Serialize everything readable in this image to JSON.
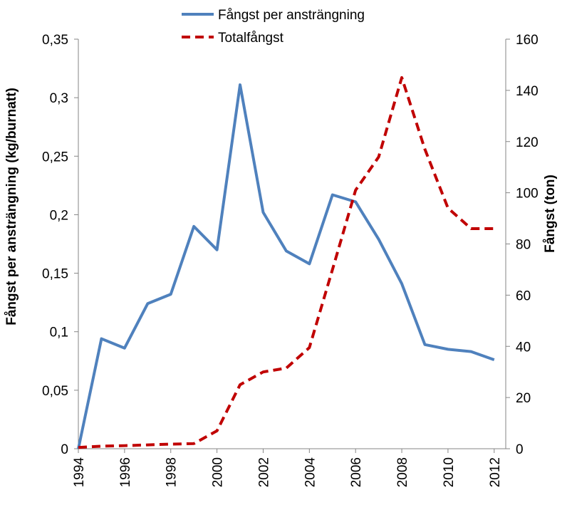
{
  "chart_data": {
    "type": "line",
    "x": [
      1994,
      1995,
      1996,
      1997,
      1998,
      1999,
      2000,
      2001,
      2002,
      2003,
      2004,
      2005,
      2006,
      2007,
      2008,
      2009,
      2010,
      2011,
      2012
    ],
    "series": [
      {
        "name": "Fångst per ansträngning",
        "color": "#4f81bd",
        "dash": false,
        "values": [
          0,
          0.094,
          0.086,
          0.124,
          0.132,
          0.19,
          0.17,
          0.311,
          0.202,
          0.169,
          0.158,
          0.217,
          0.211,
          0.179,
          0.141,
          0.089,
          0.085,
          0.083,
          0.076
        ]
      },
      {
        "name": "Totalfångst",
        "color": "#c00000",
        "dash": true,
        "axis": "y2",
        "values": [
          0.5,
          1,
          1.2,
          1.5,
          1.8,
          2,
          7,
          25,
          30,
          31.5,
          39.5,
          70,
          101,
          114,
          145,
          117,
          94,
          86,
          86
        ]
      }
    ],
    "xlim": [
      1994,
      2012.5
    ],
    "xticks": [
      1994,
      1996,
      1998,
      2000,
      2002,
      2004,
      2006,
      2008,
      2010,
      2012
    ],
    "ylim": [
      0,
      0.35
    ],
    "yticks": [
      0,
      {
        "value": 0.05,
        "label": "0,05"
      },
      {
        "value": 0.1,
        "label": "0,1"
      },
      {
        "value": 0.15,
        "label": "0,15"
      },
      {
        "value": 0.2,
        "label": "0,2"
      },
      {
        "value": 0.25,
        "label": "0,25"
      },
      {
        "value": 0.3,
        "label": "0,3"
      },
      {
        "value": 0.35,
        "label": "0,35"
      }
    ],
    "y2lim": [
      0,
      160
    ],
    "y2ticks": [
      0,
      20,
      40,
      60,
      80,
      100,
      120,
      140,
      160
    ],
    "ylabel": "Fångst per ansträngning (kg/burnatt)",
    "y2label": "Fångst (ton)",
    "grid": false
  }
}
